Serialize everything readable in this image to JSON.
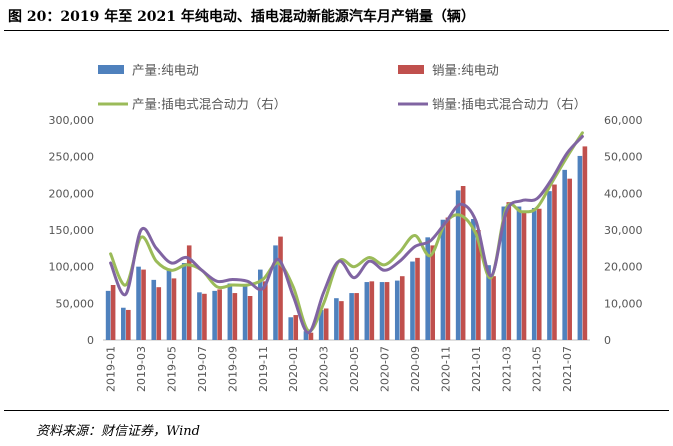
{
  "title": "图 20：2019 年至 2021 年纯电动、插电混动新能源汽车月产销量（辆）",
  "source": "资料来源：财信证券，Wind",
  "chart_data": {
    "type": "bar",
    "x_tick_labels": [
      "2019-01",
      "2019-03",
      "2019-05",
      "2019-07",
      "2019-09",
      "2019-11",
      "2020-01",
      "2020-03",
      "2020-05",
      "2020-07",
      "2020-09",
      "2020-11",
      "2021-01",
      "2021-03",
      "2021-05",
      "2021-07"
    ],
    "categories": [
      "2019-01",
      "2019-02",
      "2019-03",
      "2019-04",
      "2019-05",
      "2019-06",
      "2019-07",
      "2019-08",
      "2019-09",
      "2019-10",
      "2019-11",
      "2019-12",
      "2020-01",
      "2020-02",
      "2020-03",
      "2020-04",
      "2020-05",
      "2020-06",
      "2020-07",
      "2020-08",
      "2020-09",
      "2020-10",
      "2020-11",
      "2020-12",
      "2021-01",
      "2021-02",
      "2021-03",
      "2021-04",
      "2021-05",
      "2021-06",
      "2021-07",
      "2021-08"
    ],
    "left_axis": {
      "ylim": [
        0,
        300000
      ],
      "ticks": [
        "0",
        "50,000",
        "100,000",
        "150,000",
        "200,000",
        "250,000",
        "300,000"
      ]
    },
    "right_axis": {
      "ylim": [
        0,
        60000
      ],
      "ticks": [
        "0",
        "10,000",
        "20,000",
        "30,000",
        "40,000",
        "50,000",
        "60,000"
      ]
    },
    "grid": false,
    "legend_position": "top",
    "series": [
      {
        "name": "产量:纯电动",
        "type": "bar",
        "axis": "left",
        "color": "#4f81bd",
        "values": [
          67000,
          44000,
          100000,
          82000,
          95000,
          105000,
          65000,
          67000,
          77000,
          74000,
          96000,
          129000,
          31000,
          12000,
          41000,
          57000,
          64000,
          79000,
          79000,
          81000,
          107000,
          140000,
          164000,
          204000,
          165000,
          102000,
          182000,
          182000,
          180000,
          203000,
          232000,
          251000
        ]
      },
      {
        "name": "销量:纯电动",
        "type": "bar",
        "axis": "left",
        "color": "#c0504d",
        "values": [
          75000,
          41000,
          96000,
          72000,
          84000,
          129000,
          63000,
          69000,
          64000,
          60000,
          80000,
          141000,
          34000,
          10000,
          43000,
          53000,
          64000,
          80000,
          79000,
          87000,
          112000,
          129000,
          167000,
          210000,
          150000,
          87000,
          188000,
          176000,
          179000,
          212000,
          220000,
          264000
        ]
      },
      {
        "name": "产量:插电式混合动力（右）",
        "type": "line",
        "axis": "right",
        "color": "#9bbb59",
        "values": [
          23500,
          15000,
          28000,
          21500,
          19000,
          20500,
          19000,
          14500,
          15000,
          15000,
          16500,
          21000,
          14500,
          2500,
          10000,
          21500,
          20000,
          22500,
          20500,
          24000,
          28500,
          23000,
          32000,
          34000,
          29000,
          17000,
          36000,
          35000,
          36000,
          43000,
          50000,
          56500
        ]
      },
      {
        "name": "销量:插电式混合动力（右）",
        "type": "line",
        "axis": "right",
        "color": "#8064a2",
        "values": [
          21000,
          12500,
          30000,
          25000,
          21000,
          22500,
          19000,
          16000,
          16500,
          16000,
          14000,
          22000,
          12000,
          2000,
          13000,
          21500,
          17000,
          21500,
          19000,
          21500,
          25500,
          27000,
          32000,
          37000,
          32500,
          17500,
          35000,
          38000,
          38500,
          44000,
          51000,
          55500
        ]
      }
    ]
  }
}
